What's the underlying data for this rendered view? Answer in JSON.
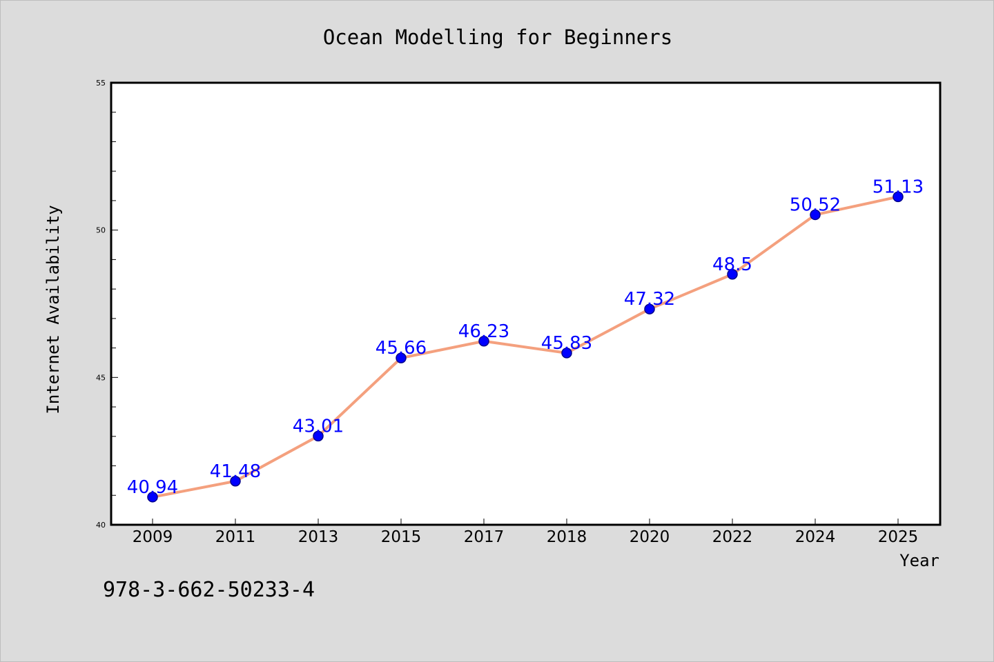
{
  "chart_data": {
    "type": "line",
    "title": "Ocean Modelling for Beginners",
    "xlabel": "Year",
    "ylabel": "Internet Availability",
    "categories": [
      "2009",
      "2011",
      "2013",
      "2015",
      "2017",
      "2018",
      "2020",
      "2022",
      "2024",
      "2025"
    ],
    "series": [
      {
        "values": [
          40.94,
          41.48,
          43.01,
          45.66,
          46.23,
          45.83,
          47.32,
          48.5,
          50.52,
          51.13
        ],
        "data_labels": [
          "40.94",
          "41.48",
          "43.01",
          "45.66",
          "46.23",
          "45.83",
          "47.32",
          "48.5",
          "50.52",
          "51.13"
        ],
        "line_color": "#f4a07e",
        "marker_color": "#0000ff",
        "marker_edge_color": "#00008b",
        "label_color": "#0000ff"
      }
    ],
    "ylim": [
      40,
      55
    ],
    "y_major_ticks": [
      "40",
      "45",
      "50",
      "55"
    ],
    "grid": false,
    "footer_text": "978-3-662-50233-4"
  },
  "colors": {
    "background": "#dcdcdc",
    "plot_background": "#ffffff",
    "axes": "#000000"
  }
}
